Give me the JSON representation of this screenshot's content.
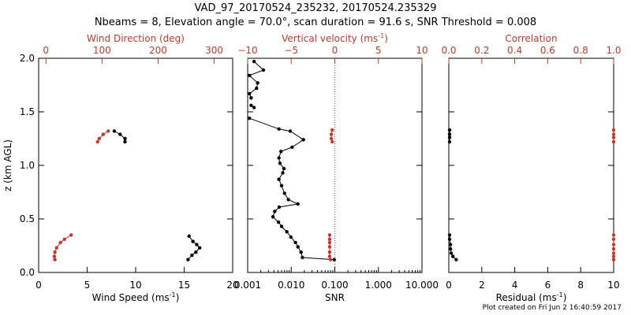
{
  "header": {
    "title": "VAD_97_20170524_235232, 20170524.235329",
    "subtitle": "Nbeams = 8, Elevation angle = 70.0°, scan duration = 91.6 s, SNR Threshold = 0.008"
  },
  "footer": {
    "credit": "Plot created on Fri Jun  2 16:40:59 2017"
  },
  "colors": {
    "primary": "#000000",
    "secondary": "#c0392b"
  },
  "chart_data": [
    {
      "type": "line",
      "panel": "left",
      "ylabel": "z (km AGL)",
      "ylim": [
        0,
        2
      ],
      "yticks": [
        "0.0",
        "0.5",
        "1.0",
        "1.5",
        "2.0"
      ],
      "bottom_axis": {
        "label": "Wind Speed (ms⁻¹)",
        "range": [
          0,
          20
        ],
        "ticks": [
          "0",
          "5",
          "10",
          "15",
          "20"
        ]
      },
      "top_axis": {
        "label": "Wind Direction (deg)",
        "range": [
          -13,
          333
        ],
        "ticks": [
          "0",
          "100",
          "200",
          "300"
        ]
      },
      "series": [
        {
          "axis": "bottom",
          "color": "#000000",
          "segments": [
            [
              [
                15.5,
                0.34
              ],
              [
                15.9,
                0.29
              ],
              [
                16.3,
                0.26
              ],
              [
                16.6,
                0.23
              ],
              [
                16.2,
                0.19
              ],
              [
                15.8,
                0.16
              ],
              [
                15.4,
                0.12
              ]
            ],
            [
              [
                7.8,
                1.32
              ],
              [
                8.4,
                1.29
              ],
              [
                8.9,
                1.25
              ],
              [
                8.9,
                1.22
              ]
            ]
          ]
        },
        {
          "axis": "top",
          "color": "#c0392b",
          "segments": [
            [
              [
                45,
                0.35
              ],
              [
                33,
                0.31
              ],
              [
                26,
                0.28
              ],
              [
                19,
                0.23
              ],
              [
                16,
                0.19
              ],
              [
                15,
                0.15
              ],
              [
                16,
                0.12
              ]
            ],
            [
              [
                111,
                1.32
              ],
              [
                102,
                1.29
              ],
              [
                95,
                1.25
              ],
              [
                92,
                1.22
              ]
            ]
          ]
        }
      ]
    },
    {
      "type": "line",
      "panel": "middle",
      "xscale": "log",
      "bottom_axis": {
        "label": "SNR",
        "range": [
          0.001,
          10
        ],
        "ticks": [
          "0.001",
          "0.010",
          "0.100",
          "1.000",
          "10.000"
        ]
      },
      "top_axis": {
        "label": "Vertical velocity (ms⁻¹)",
        "range": [
          -10,
          10
        ],
        "ticks": [
          "−10",
          "−5",
          "0",
          "5",
          "10"
        ],
        "zero_line": true
      },
      "series": [
        {
          "axis": "bottom",
          "color": "#000000",
          "segments": [
            [
              [
                0.0014,
                1.97
              ],
              [
                0.0023,
                1.89
              ],
              [
                0.0011,
                1.84
              ],
              [
                0.0017,
                1.77
              ],
              [
                0.0016,
                1.72
              ],
              [
                0.0011,
                1.67
              ],
              [
                0.0012,
                1.63
              ]
            ],
            [
              [
                0.0012,
                1.56
              ],
              [
                0.0014,
                1.54
              ]
            ],
            [
              [
                0.0011,
                1.44
              ],
              [
                0.0052,
                1.34
              ],
              [
                0.0095,
                1.32
              ],
              [
                0.019,
                1.24
              ],
              [
                0.0105,
                1.17
              ],
              [
                0.0058,
                1.13
              ],
              [
                0.0052,
                1.07
              ],
              [
                0.0055,
                1.02
              ],
              [
                0.0068,
                0.97
              ],
              [
                0.0064,
                0.93
              ],
              [
                0.0052,
                0.87
              ],
              [
                0.006,
                0.81
              ],
              [
                0.007,
                0.74
              ],
              [
                0.0086,
                0.68
              ],
              [
                0.0142,
                0.64
              ],
              [
                0.0053,
                0.61
              ],
              [
                0.0042,
                0.57
              ],
              [
                0.0038,
                0.52
              ],
              [
                0.0051,
                0.47
              ],
              [
                0.006,
                0.43
              ],
              [
                0.0079,
                0.38
              ],
              [
                0.0098,
                0.33
              ],
              [
                0.0125,
                0.28
              ],
              [
                0.0142,
                0.24
              ],
              [
                0.0168,
                0.19
              ],
              [
                0.018,
                0.14
              ],
              [
                0.097,
                0.12
              ]
            ]
          ]
        },
        {
          "axis": "top",
          "color": "#c0392b",
          "segments": [
            [
              [
                -0.3,
                1.33
              ],
              [
                -0.4,
                1.29
              ],
              [
                -0.4,
                1.25
              ],
              [
                -0.3,
                1.22
              ]
            ],
            [
              [
                -0.6,
                0.35
              ],
              [
                -0.6,
                0.31
              ],
              [
                -0.6,
                0.28
              ],
              [
                -0.6,
                0.24
              ],
              [
                -0.6,
                0.19
              ],
              [
                -0.6,
                0.15
              ],
              [
                -0.5,
                0.12
              ]
            ]
          ]
        }
      ]
    },
    {
      "type": "line",
      "panel": "right",
      "bottom_axis": {
        "label": "Residual (ms⁻¹)",
        "range": [
          0,
          10
        ],
        "ticks": [
          "0",
          "2",
          "4",
          "6",
          "8",
          "10"
        ]
      },
      "top_axis": {
        "label": "Correlation",
        "range": [
          0,
          1
        ],
        "ticks": [
          "0.0",
          "0.2",
          "0.4",
          "0.6",
          "0.8",
          "1.0"
        ]
      },
      "series": [
        {
          "axis": "bottom",
          "color": "#000000",
          "segments": [
            [
              [
                0.05,
                1.33
              ],
              [
                0.05,
                1.29
              ],
              [
                0.05,
                1.26
              ],
              [
                0.05,
                1.22
              ]
            ],
            [
              [
                0.05,
                0.35
              ],
              [
                0.05,
                0.31
              ],
              [
                0.1,
                0.26
              ],
              [
                0.1,
                0.22
              ],
              [
                0.15,
                0.18
              ],
              [
                0.25,
                0.15
              ],
              [
                0.45,
                0.12
              ]
            ]
          ]
        },
        {
          "axis": "top",
          "color": "#c0392b",
          "segments": [
            [
              [
                1,
                1.33
              ],
              [
                1,
                1.29
              ],
              [
                1,
                1.26
              ],
              [
                1,
                1.22
              ]
            ],
            [
              [
                1,
                0.35
              ],
              [
                1,
                0.31
              ],
              [
                1,
                0.26
              ],
              [
                1,
                0.22
              ],
              [
                1,
                0.18
              ],
              [
                1,
                0.15
              ],
              [
                1,
                0.12
              ]
            ]
          ]
        }
      ]
    }
  ]
}
